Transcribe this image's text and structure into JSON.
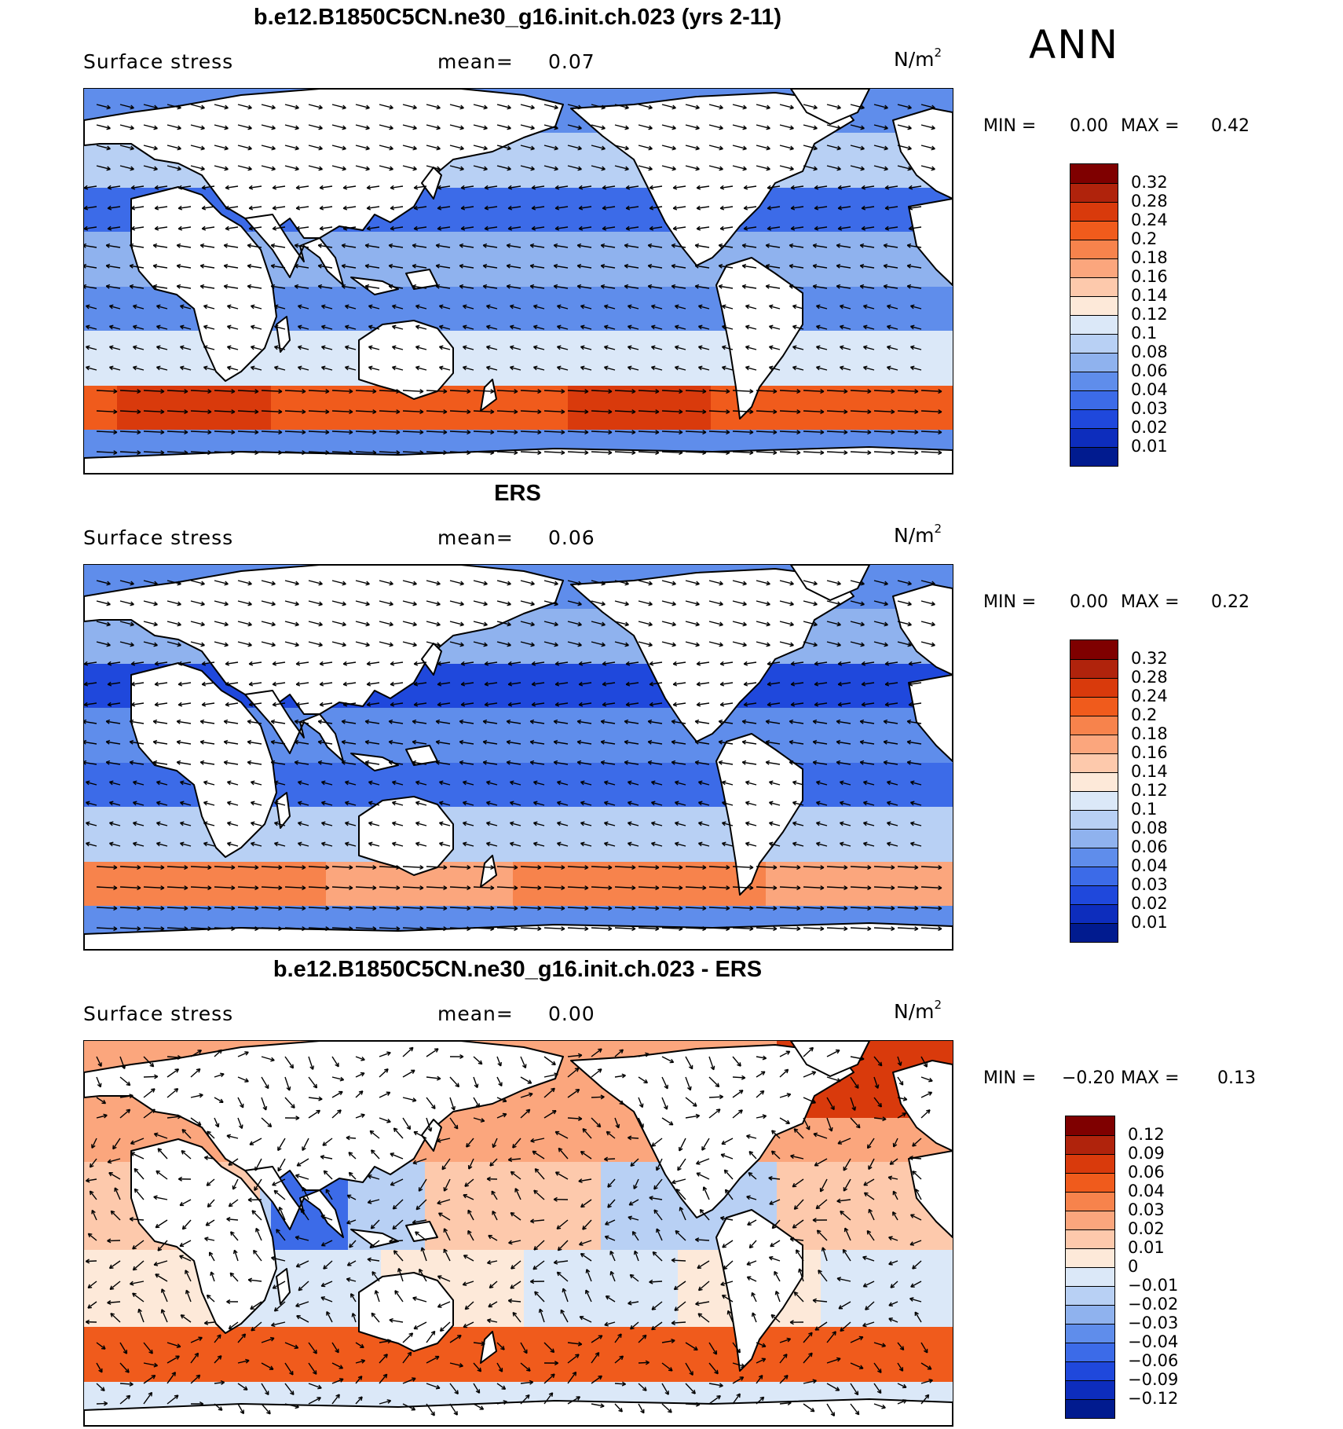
{
  "season": "ANN",
  "panels": [
    {
      "title": "b.e12.B1850C5CN.ne30_g16.init.ch.023 (yrs 2-11)",
      "variable": "Surface stress",
      "mean_label": "mean=",
      "mean": "0.07",
      "units": "N/m",
      "units_sup": "2",
      "min_label": "MIN =",
      "min": "0.00",
      "max_label": "MAX =",
      "max": "0.42",
      "colorbar": {
        "labels": [
          "0.32",
          "0.28",
          "0.24",
          "0.2",
          "0.18",
          "0.16",
          "0.14",
          "0.12",
          "0.1",
          "0.08",
          "0.06",
          "0.04",
          "0.03",
          "0.02",
          "0.01"
        ],
        "colors": [
          "#7f0000",
          "#b0230c",
          "#d93a0c",
          "#f05b1c",
          "#f7834c",
          "#fba67d",
          "#fdc9ac",
          "#fde9d9",
          "#dbe8f8",
          "#b8d0f4",
          "#8fb2ee",
          "#5f8deb",
          "#3c6be8",
          "#1f48dc",
          "#0d2dbd",
          "#011b8f"
        ]
      }
    },
    {
      "title": "ERS",
      "variable": "Surface stress",
      "mean_label": "mean=",
      "mean": "0.06",
      "units": "N/m",
      "units_sup": "2",
      "min_label": "MIN =",
      "min": "0.00",
      "max_label": "MAX =",
      "max": "0.22",
      "colorbar": {
        "labels": [
          "0.32",
          "0.28",
          "0.24",
          "0.2",
          "0.18",
          "0.16",
          "0.14",
          "0.12",
          "0.1",
          "0.08",
          "0.06",
          "0.04",
          "0.03",
          "0.02",
          "0.01"
        ],
        "colors": [
          "#7f0000",
          "#b0230c",
          "#d93a0c",
          "#f05b1c",
          "#f7834c",
          "#fba67d",
          "#fdc9ac",
          "#fde9d9",
          "#dbe8f8",
          "#b8d0f4",
          "#8fb2ee",
          "#5f8deb",
          "#3c6be8",
          "#1f48dc",
          "#0d2dbd",
          "#011b8f"
        ]
      }
    },
    {
      "title": "b.e12.B1850C5CN.ne30_g16.init.ch.023 - ERS",
      "variable": "Surface stress",
      "mean_label": "mean=",
      "mean": "0.00",
      "units": "N/m",
      "units_sup": "2",
      "min_label": "MIN =",
      "min": "−0.20",
      "max_label": "MAX =",
      "max": "0.13",
      "colorbar": {
        "labels": [
          "0.12",
          "0.09",
          "0.06",
          "0.04",
          "0.03",
          "0.02",
          "0.01",
          "0",
          "−0.01",
          "−0.02",
          "−0.03",
          "−0.04",
          "−0.06",
          "−0.09",
          "−0.12"
        ],
        "colors": [
          "#7f0000",
          "#b0230c",
          "#d93a0c",
          "#f05b1c",
          "#f7834c",
          "#fba67d",
          "#fdc9ac",
          "#fde9d9",
          "#dbe8f8",
          "#b8d0f4",
          "#8fb2ee",
          "#5f8deb",
          "#3c6be8",
          "#1f48dc",
          "#0d2dbd",
          "#011b8f"
        ]
      }
    }
  ]
}
